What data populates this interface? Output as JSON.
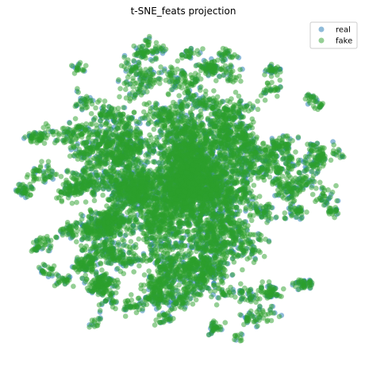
{
  "chart_data": {
    "type": "scatter",
    "title": "t-SNE_feats projection",
    "xlabel": "",
    "ylabel": "",
    "axes_visible": false,
    "grid": false,
    "legend_position": "top-right",
    "point_alpha": 0.5,
    "series": [
      {
        "name": "real",
        "color": "#1f77b4"
      },
      {
        "name": "fake",
        "color": "#2ca02c"
      }
    ],
    "distribution": {
      "shape": "circular cloud",
      "density": "dense center, sparse small clusters toward the rim",
      "note": "individual t-SNE points are too numerous to read; the fake series overplots most of the real series"
    }
  }
}
